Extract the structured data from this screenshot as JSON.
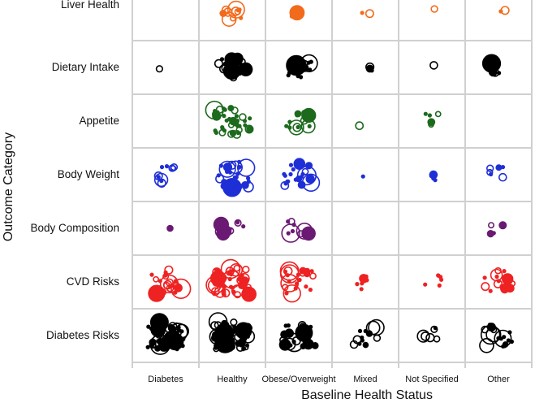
{
  "chart_data": {
    "type": "scatter",
    "title": "",
    "xlabel": "Baseline Health Status",
    "ylabel": "Outcome Category",
    "x_categories": [
      "Diabetes",
      "Healthy",
      "Obese/Overweight",
      "Mixed",
      "Not Specified",
      "Other"
    ],
    "y_categories": [
      "Liver Health",
      "Dietary Intake",
      "Appetite",
      "Body Weight",
      "Body Composition",
      "CVD Risks",
      "Diabetes Risks"
    ],
    "grid": true,
    "legend": "none",
    "colors": {
      "Liver Health": "#f26b1d",
      "Dietary Intake": "#000000",
      "Appetite": "#1d6a1d",
      "Body Weight": "#1f2fd6",
      "Body Composition": "#6a1a72",
      "CVD Risks": "#ee2222",
      "Diabetes Risks": "#000000",
      "grid": "#d0d0d0"
    },
    "cells": [
      {
        "category": "Liver Health",
        "group": "Diabetes",
        "n": 0
      },
      {
        "category": "Liver Health",
        "group": "Healthy",
        "n": 11
      },
      {
        "category": "Liver Health",
        "group": "Obese/Overweight",
        "n": 4
      },
      {
        "category": "Liver Health",
        "group": "Mixed",
        "n": 2
      },
      {
        "category": "Liver Health",
        "group": "Not Specified",
        "n": 1
      },
      {
        "category": "Liver Health",
        "group": "Other",
        "n": 2
      },
      {
        "category": "Dietary Intake",
        "group": "Diabetes",
        "n": 1
      },
      {
        "category": "Dietary Intake",
        "group": "Healthy",
        "n": 18
      },
      {
        "category": "Dietary Intake",
        "group": "Obese/Overweight",
        "n": 15
      },
      {
        "category": "Dietary Intake",
        "group": "Mixed",
        "n": 3
      },
      {
        "category": "Dietary Intake",
        "group": "Not Specified",
        "n": 1
      },
      {
        "category": "Dietary Intake",
        "group": "Other",
        "n": 5
      },
      {
        "category": "Appetite",
        "group": "Diabetes",
        "n": 0
      },
      {
        "category": "Appetite",
        "group": "Healthy",
        "n": 40
      },
      {
        "category": "Appetite",
        "group": "Obese/Overweight",
        "n": 14
      },
      {
        "category": "Appetite",
        "group": "Mixed",
        "n": 1
      },
      {
        "category": "Appetite",
        "group": "Not Specified",
        "n": 5
      },
      {
        "category": "Appetite",
        "group": "Other",
        "n": 0
      },
      {
        "category": "Body Weight",
        "group": "Diabetes",
        "n": 10
      },
      {
        "category": "Body Weight",
        "group": "Healthy",
        "n": 30
      },
      {
        "category": "Body Weight",
        "group": "Obese/Overweight",
        "n": 22
      },
      {
        "category": "Body Weight",
        "group": "Mixed",
        "n": 1
      },
      {
        "category": "Body Weight",
        "group": "Not Specified",
        "n": 4
      },
      {
        "category": "Body Weight",
        "group": "Other",
        "n": 6
      },
      {
        "category": "Body Composition",
        "group": "Diabetes",
        "n": 1
      },
      {
        "category": "Body Composition",
        "group": "Healthy",
        "n": 11
      },
      {
        "category": "Body Composition",
        "group": "Obese/Overweight",
        "n": 10
      },
      {
        "category": "Body Composition",
        "group": "Mixed",
        "n": 0
      },
      {
        "category": "Body Composition",
        "group": "Not Specified",
        "n": 0
      },
      {
        "category": "Body Composition",
        "group": "Other",
        "n": 4
      },
      {
        "category": "CVD Risks",
        "group": "Diabetes",
        "n": 25
      },
      {
        "category": "CVD Risks",
        "group": "Healthy",
        "n": 55
      },
      {
        "category": "CVD Risks",
        "group": "Obese/Overweight",
        "n": 22
      },
      {
        "category": "CVD Risks",
        "group": "Mixed",
        "n": 7
      },
      {
        "category": "CVD Risks",
        "group": "Not Specified",
        "n": 6
      },
      {
        "category": "CVD Risks",
        "group": "Other",
        "n": 20
      },
      {
        "category": "Diabetes Risks",
        "group": "Diabetes",
        "n": 50
      },
      {
        "category": "Diabetes Risks",
        "group": "Healthy",
        "n": 70
      },
      {
        "category": "Diabetes Risks",
        "group": "Obese/Overweight",
        "n": 30
      },
      {
        "category": "Diabetes Risks",
        "group": "Mixed",
        "n": 12
      },
      {
        "category": "Diabetes Risks",
        "group": "Not Specified",
        "n": 6
      },
      {
        "category": "Diabetes Risks",
        "group": "Other",
        "n": 18
      }
    ]
  }
}
